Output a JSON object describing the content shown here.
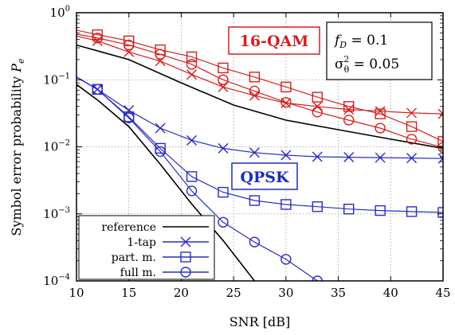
{
  "chart_data": {
    "type": "line",
    "xlabel": "SNR [dB]",
    "ylabel_main": "Symbol error probability ",
    "ylabel_var": "P",
    "ylabel_sub": "e",
    "x_scale": "linear",
    "y_scale": "log",
    "xlim": [
      10,
      45
    ],
    "ylim": [
      0.0001,
      1
    ],
    "x_ticks": [
      10,
      15,
      20,
      25,
      30,
      35,
      40,
      45
    ],
    "x_tick_labels": [
      "10",
      "15",
      "20",
      "25",
      "30",
      "35",
      "40",
      "45"
    ],
    "y_ticks": [
      0.0001,
      0.001,
      0.01,
      0.1,
      1
    ],
    "y_tick_base": [
      "10",
      "10",
      "10",
      "10",
      "10"
    ],
    "y_tick_exp": [
      "−4",
      "−3",
      "−2",
      "−1",
      "0"
    ],
    "grid": "dotted",
    "legend_placement": "bottom-left",
    "legend": [
      {
        "label": "reference",
        "marker": "none",
        "color": "#000000"
      },
      {
        "label": "1-tap",
        "marker": "x",
        "color": "#2b2bc4"
      },
      {
        "label": "part. m.",
        "marker": "square",
        "color": "#2b2bc4"
      },
      {
        "label": "full m.",
        "marker": "circle",
        "color": "#2b2bc4"
      }
    ],
    "annotations": {
      "qam": {
        "text": "16-QAM",
        "color": "#d42020"
      },
      "qpsk": {
        "text": "QPSK",
        "color": "#1e2bc0"
      },
      "params": {
        "line1_var": "f",
        "line1_sub": "D",
        "line1_rest": " = 0.1",
        "line2_var": "σ",
        "line2_sub": "θ",
        "line2_sup": "2",
        "line2_rest": " = 0.05"
      }
    },
    "series": [
      {
        "group": "16-QAM",
        "kind": "reference",
        "marker": "none",
        "color": "#000000",
        "x": [
          10,
          15,
          20,
          25,
          30,
          35,
          40,
          45
        ],
        "y": [
          0.33,
          0.2,
          0.09,
          0.042,
          0.025,
          0.018,
          0.013,
          0.0095
        ]
      },
      {
        "group": "16-QAM",
        "kind": "1-tap",
        "marker": "x",
        "color": "#d42020",
        "x": [
          10,
          12,
          15,
          18,
          21,
          24,
          27,
          30,
          33,
          36,
          39,
          42,
          45
        ],
        "y": [
          0.45,
          0.38,
          0.26,
          0.19,
          0.12,
          0.078,
          0.058,
          0.045,
          0.04,
          0.036,
          0.034,
          0.032,
          0.031
        ]
      },
      {
        "group": "16-QAM",
        "kind": "part. m.",
        "marker": "square",
        "color": "#d42020",
        "x": [
          10,
          12,
          15,
          18,
          21,
          24,
          27,
          30,
          33,
          36,
          39,
          42,
          45
        ],
        "y": [
          0.55,
          0.47,
          0.38,
          0.28,
          0.22,
          0.15,
          0.11,
          0.078,
          0.055,
          0.04,
          0.031,
          0.02,
          0.012
        ]
      },
      {
        "group": "16-QAM",
        "kind": "full m.",
        "marker": "circle",
        "color": "#d42020",
        "x": [
          10,
          12,
          15,
          18,
          21,
          24,
          27,
          30,
          33,
          36,
          39,
          42,
          45
        ],
        "y": [
          0.48,
          0.42,
          0.33,
          0.24,
          0.17,
          0.1,
          0.068,
          0.046,
          0.033,
          0.025,
          0.019,
          0.013,
          0.0098
        ]
      },
      {
        "group": "QPSK",
        "kind": "reference",
        "marker": "none",
        "color": "#000000",
        "x": [
          10,
          12,
          15,
          18,
          21,
          24,
          27
        ],
        "y": [
          0.085,
          0.05,
          0.02,
          0.0055,
          0.0014,
          0.0004,
          0.0001
        ]
      },
      {
        "group": "QPSK",
        "kind": "1-tap",
        "marker": "x",
        "color": "#2b2bc4",
        "x": [
          10,
          12,
          15,
          18,
          21,
          24,
          27,
          30,
          33,
          36,
          39,
          42,
          45
        ],
        "y": [
          0.11,
          0.072,
          0.035,
          0.019,
          0.0125,
          0.0095,
          0.0082,
          0.0075,
          0.0071,
          0.007,
          0.0069,
          0.0068,
          0.0067
        ]
      },
      {
        "group": "QPSK",
        "kind": "part. m.",
        "marker": "square",
        "color": "#2b2bc4",
        "x": [
          10,
          12,
          15,
          18,
          21,
          24,
          27,
          30,
          33,
          36,
          39,
          42,
          45
        ],
        "y": [
          0.11,
          0.072,
          0.028,
          0.0095,
          0.0036,
          0.0021,
          0.00158,
          0.00138,
          0.00128,
          0.00118,
          0.00112,
          0.00108,
          0.00105
        ]
      },
      {
        "group": "QPSK",
        "kind": "full m.",
        "marker": "circle",
        "color": "#2b2bc4",
        "x": [
          10,
          12,
          15,
          18,
          21,
          24,
          27,
          30,
          33
        ],
        "y": [
          0.11,
          0.072,
          0.027,
          0.0085,
          0.0022,
          0.00075,
          0.00038,
          0.00021,
          0.0001
        ]
      }
    ]
  }
}
